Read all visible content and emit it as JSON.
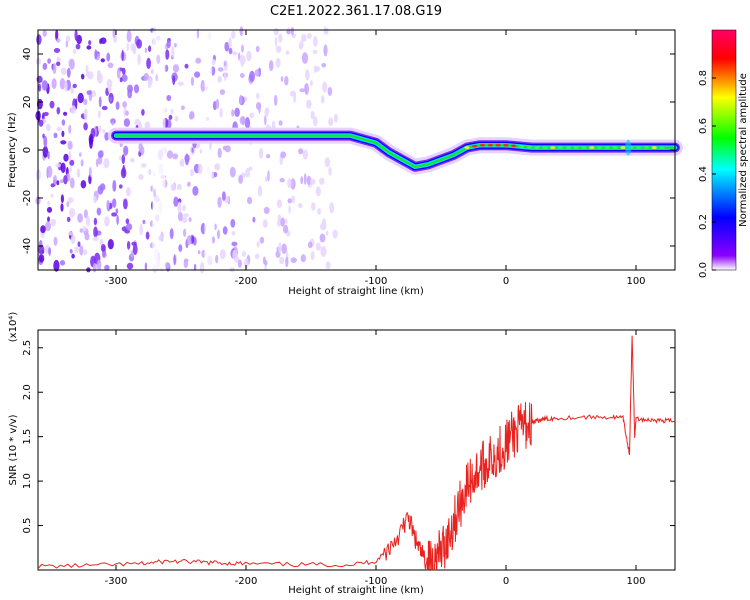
{
  "title": "C2E1.2022.361.17.08.G19",
  "chart_data": [
    {
      "type": "heatmap",
      "xlabel": "Height of straight line (km)",
      "ylabel": "Frequency (Hz)",
      "xlim": [
        -360,
        130
      ],
      "ylim": [
        -50,
        50
      ],
      "x_ticks": [
        -300,
        -200,
        -100,
        0,
        100
      ],
      "y_ticks": [
        -40,
        -20,
        0,
        20,
        40
      ],
      "colorbar": {
        "label": "Normalized spectral amplitude",
        "range": [
          0,
          1
        ],
        "ticks": [
          "0.0",
          "0.2",
          "0.4",
          "0.6",
          "0.8"
        ],
        "colors": [
          "#ffffff",
          "#8a00ff",
          "#0000ff",
          "#00ffff",
          "#00ff00",
          "#ffff00",
          "#ff0000",
          "#ff0066"
        ]
      },
      "ridge": {
        "x": [
          -300,
          -250,
          -200,
          -150,
          -120,
          -100,
          -90,
          -80,
          -70,
          -60,
          -50,
          -40,
          -30,
          -20,
          -10,
          0,
          20,
          50,
          80,
          100,
          130
        ],
        "y": [
          6,
          6,
          6,
          6,
          6,
          3,
          -1,
          -4,
          -7,
          -6,
          -4,
          -2,
          1,
          2,
          2,
          2,
          1,
          1,
          1,
          1,
          1
        ]
      },
      "noise_region_x": [
        -360,
        -130
      ]
    },
    {
      "type": "line",
      "xlabel": "Height of straight line (km)",
      "ylabel": "SNR (10 * v/v)",
      "y_multiplier": "(x10⁴)",
      "xlim": [
        -360,
        130
      ],
      "ylim": [
        0,
        2.7
      ],
      "x_ticks": [
        -300,
        -200,
        -100,
        0,
        100
      ],
      "y_ticks": [
        "0.5",
        "1.0",
        "1.5",
        "2.0",
        "2.5"
      ],
      "color": "#e8231f",
      "series": [
        {
          "x": [
            -360,
            -320,
            -280,
            -260,
            -240,
            -220,
            -200,
            -160,
            -120,
            -100,
            -90,
            -80,
            -75,
            -70,
            -65,
            -60,
            -55,
            -50,
            -45,
            -40,
            -35,
            -30,
            -25,
            -20,
            -15,
            -10,
            -5,
            0,
            5,
            10,
            15,
            20,
            25,
            30,
            40,
            60,
            80,
            90,
            95,
            97,
            99,
            100,
            110,
            120,
            130
          ],
          "y": [
            0.04,
            0.05,
            0.07,
            0.1,
            0.09,
            0.08,
            0.07,
            0.06,
            0.06,
            0.1,
            0.25,
            0.45,
            0.6,
            0.35,
            0.18,
            0.08,
            0.1,
            0.2,
            0.35,
            0.55,
            0.75,
            0.95,
            1.05,
            1.15,
            1.2,
            1.28,
            1.35,
            1.42,
            1.52,
            1.58,
            1.63,
            1.66,
            1.68,
            1.7,
            1.71,
            1.72,
            1.72,
            1.71,
            1.3,
            2.65,
            1.5,
            1.7,
            1.69,
            1.68,
            1.68
          ]
        }
      ]
    }
  ]
}
